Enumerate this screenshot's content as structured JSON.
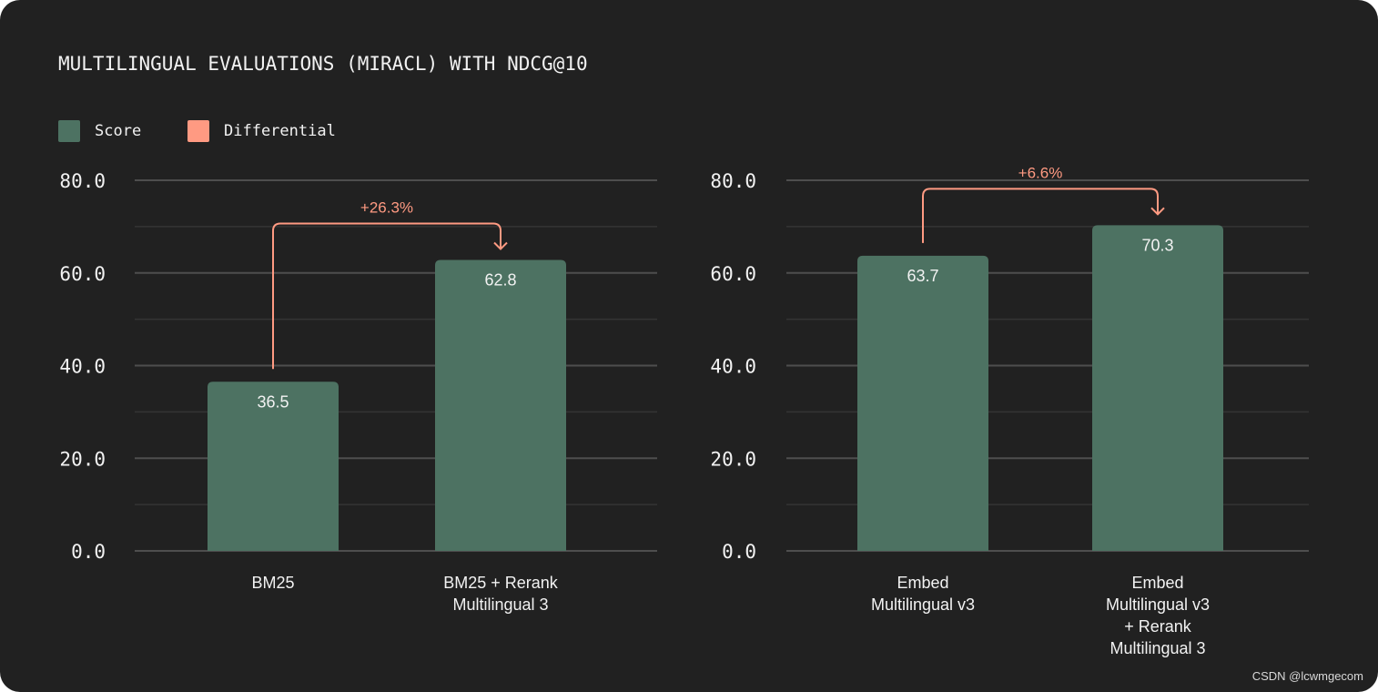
{
  "title": "MULTILINGUAL EVALUATIONS (MIRACL) WITH NDCG@10",
  "legend": [
    {
      "label": "Score",
      "color": "#4d7262"
    },
    {
      "label": "Differential",
      "color": "#ff9a82"
    }
  ],
  "watermark": "CSDN @lcwmgecom",
  "chart_data": [
    {
      "type": "bar",
      "title": "",
      "xlabel": "",
      "ylabel": "",
      "ylim": [
        0,
        80
      ],
      "yticks": [
        "0.0",
        "20.0",
        "40.0",
        "60.0",
        "80.0"
      ],
      "grid": true,
      "categories": [
        [
          "BM25"
        ],
        [
          "BM25 + Rerank",
          "Multilingual 3"
        ]
      ],
      "series": [
        {
          "name": "Score",
          "values": [
            36.5,
            62.8
          ],
          "labels": [
            "36.5",
            "62.8"
          ]
        }
      ],
      "differential": {
        "label": "+26.3%",
        "from": 0,
        "to": 1
      }
    },
    {
      "type": "bar",
      "title": "",
      "xlabel": "",
      "ylabel": "",
      "ylim": [
        0,
        80
      ],
      "yticks": [
        "0.0",
        "20.0",
        "40.0",
        "60.0",
        "80.0"
      ],
      "grid": true,
      "categories": [
        [
          "Embed",
          "Multilingual v3"
        ],
        [
          "Embed",
          "Multilingual v3",
          "+ Rerank",
          "Multilingual 3"
        ]
      ],
      "series": [
        {
          "name": "Score",
          "values": [
            63.7,
            70.3
          ],
          "labels": [
            "63.7",
            "70.3"
          ]
        }
      ],
      "differential": {
        "label": "+6.6%",
        "from": 0,
        "to": 1
      }
    }
  ]
}
